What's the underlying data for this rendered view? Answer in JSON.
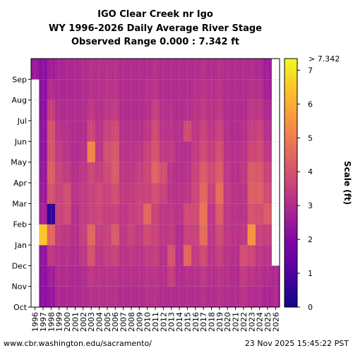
{
  "chart_data": {
    "type": "heatmap",
    "title_lines": [
      "IGO Clear Creek nr Igo",
      "WY 1996-2026 Daily Average River Stage",
      "Observed Range 0.000 : 7.342 ft"
    ],
    "x_labels": [
      "1996",
      "1997",
      "1998",
      "1999",
      "2000",
      "2001",
      "2002",
      "2003",
      "2004",
      "2005",
      "2006",
      "2007",
      "2008",
      "2009",
      "2010",
      "2011",
      "2012",
      "2013",
      "2014",
      "2015",
      "2016",
      "2017",
      "2018",
      "2019",
      "2020",
      "2021",
      "2022",
      "2023",
      "2024",
      "2025",
      "2026"
    ],
    "y_labels": [
      "Oct",
      "Nov",
      "Dec",
      "Jan",
      "Feb",
      "Mar",
      "Apr",
      "May",
      "Jun",
      "Jul",
      "Aug",
      "Sep"
    ],
    "months": [
      "Oct",
      "Nov",
      "Dec",
      "Jan",
      "Feb",
      "Mar",
      "Apr",
      "May",
      "Jun",
      "Jul",
      "Aug",
      "Sep"
    ],
    "colorbar": {
      "label": "Scale (ft)",
      "ticks": [
        0,
        1,
        2,
        3,
        4,
        5,
        6,
        7
      ],
      "tick_labels": [
        "0",
        "1",
        "2",
        "3",
        "4",
        "5",
        "6",
        "7"
      ],
      "top_label": "> 7.342",
      "min": 0,
      "max": 7.342,
      "colormap": "plasma"
    },
    "grid": true,
    "series": [
      {
        "wy": "1996",
        "monthly": [
          null,
          null,
          null,
          null,
          null,
          null,
          null,
          null,
          null,
          null,
          null,
          2.5
        ]
      },
      {
        "wy": "1997",
        "monthly": [
          2.2,
          2.2,
          2.3,
          6.5,
          2.7,
          2.5,
          2.4,
          2.3,
          2.3,
          2.2,
          2.2,
          2.2
        ]
      },
      {
        "wy": "1998",
        "monthly": [
          2.4,
          2.6,
          3.3,
          4.5,
          0.5,
          4.0,
          4.3,
          4.0,
          4.0,
          3.5,
          3.0,
          2.6
        ]
      },
      {
        "wy": "1999",
        "monthly": [
          2.9,
          3.0,
          3.1,
          3.4,
          3.6,
          3.6,
          3.6,
          3.4,
          3.2,
          3.0,
          2.9,
          2.8
        ]
      },
      {
        "wy": "2000",
        "monthly": [
          2.9,
          3.0,
          3.1,
          3.3,
          3.8,
          3.9,
          3.4,
          3.2,
          3.1,
          3.0,
          2.9,
          2.9
        ]
      },
      {
        "wy": "2001",
        "monthly": [
          2.9,
          2.9,
          3.0,
          3.1,
          3.1,
          3.2,
          3.1,
          3.0,
          3.0,
          3.0,
          2.9,
          2.9
        ]
      },
      {
        "wy": "2002",
        "monthly": [
          3.0,
          3.0,
          3.3,
          3.5,
          3.4,
          3.4,
          3.3,
          3.1,
          3.0,
          3.0,
          3.0,
          3.0
        ]
      },
      {
        "wy": "2003",
        "monthly": [
          3.1,
          3.3,
          4.0,
          4.5,
          3.6,
          3.6,
          3.7,
          5.2,
          3.7,
          3.3,
          3.1,
          3.1
        ]
      },
      {
        "wy": "2004",
        "monthly": [
          3.1,
          3.2,
          3.3,
          3.5,
          3.7,
          3.8,
          3.5,
          3.3,
          3.2,
          3.1,
          3.1,
          3.1
        ]
      },
      {
        "wy": "2005",
        "monthly": [
          3.1,
          3.2,
          3.5,
          3.6,
          3.5,
          3.6,
          3.8,
          3.9,
          3.6,
          3.3,
          3.2,
          3.1
        ]
      },
      {
        "wy": "2006",
        "monthly": [
          3.1,
          3.2,
          3.6,
          4.2,
          3.6,
          3.9,
          4.2,
          4.1,
          3.8,
          3.4,
          3.2,
          3.1
        ]
      },
      {
        "wy": "2007",
        "monthly": [
          3.0,
          3.1,
          3.2,
          3.3,
          3.3,
          3.4,
          3.3,
          3.2,
          3.1,
          3.0,
          3.0,
          3.0
        ]
      },
      {
        "wy": "2008",
        "monthly": [
          3.0,
          3.1,
          3.3,
          3.6,
          3.5,
          3.4,
          3.3,
          3.2,
          3.1,
          3.0,
          3.0,
          3.0
        ]
      },
      {
        "wy": "2009",
        "monthly": [
          3.0,
          3.1,
          3.2,
          3.4,
          3.6,
          3.6,
          3.5,
          3.3,
          3.1,
          3.0,
          3.0,
          3.0
        ]
      },
      {
        "wy": "2010",
        "monthly": [
          3.1,
          3.2,
          3.4,
          3.8,
          4.5,
          3.6,
          3.7,
          3.6,
          3.3,
          3.1,
          3.1,
          3.0
        ]
      },
      {
        "wy": "2011",
        "monthly": [
          3.1,
          3.2,
          3.5,
          3.6,
          3.6,
          3.9,
          4.4,
          4.0,
          3.8,
          3.5,
          3.2,
          3.1
        ]
      },
      {
        "wy": "2012",
        "monthly": [
          3.0,
          3.1,
          3.1,
          3.3,
          3.3,
          3.6,
          3.9,
          3.4,
          3.2,
          3.1,
          3.0,
          3.0
        ]
      },
      {
        "wy": "2013",
        "monthly": [
          3.0,
          3.5,
          4.0,
          3.4,
          3.3,
          3.2,
          3.2,
          3.4,
          3.2,
          3.1,
          3.0,
          3.0
        ]
      },
      {
        "wy": "2014",
        "monthly": [
          3.0,
          3.0,
          3.0,
          3.0,
          3.2,
          3.2,
          3.1,
          3.1,
          3.1,
          3.0,
          3.0,
          3.0
        ]
      },
      {
        "wy": "2015",
        "monthly": [
          3.0,
          3.1,
          4.5,
          3.6,
          3.8,
          3.3,
          3.2,
          3.1,
          3.8,
          3.1,
          3.0,
          3.0
        ]
      },
      {
        "wy": "2016",
        "monthly": [
          3.0,
          3.1,
          3.4,
          3.6,
          3.8,
          3.7,
          3.6,
          3.4,
          3.3,
          3.2,
          3.1,
          3.0
        ]
      },
      {
        "wy": "2017",
        "monthly": [
          3.1,
          3.3,
          3.8,
          4.6,
          4.8,
          4.5,
          4.2,
          3.8,
          3.6,
          3.3,
          3.2,
          3.1
        ]
      },
      {
        "wy": "2018",
        "monthly": [
          3.0,
          3.1,
          3.2,
          3.3,
          3.3,
          3.6,
          3.8,
          3.5,
          3.3,
          3.2,
          3.1,
          3.0
        ]
      },
      {
        "wy": "2019",
        "monthly": [
          3.1,
          3.2,
          3.5,
          3.8,
          4.2,
          4.6,
          4.2,
          3.9,
          3.6,
          3.3,
          3.2,
          3.1
        ]
      },
      {
        "wy": "2020",
        "monthly": [
          3.0,
          3.1,
          3.2,
          3.3,
          3.3,
          3.4,
          3.3,
          3.2,
          3.1,
          3.0,
          3.0,
          3.0
        ]
      },
      {
        "wy": "2021",
        "monthly": [
          3.0,
          3.0,
          3.1,
          3.2,
          3.2,
          3.2,
          3.1,
          3.1,
          3.0,
          3.0,
          3.0,
          3.0
        ]
      },
      {
        "wy": "2022",
        "monthly": [
          3.2,
          3.4,
          3.9,
          3.3,
          3.2,
          3.2,
          3.3,
          3.2,
          3.1,
          3.0,
          3.0,
          3.0
        ]
      },
      {
        "wy": "2023",
        "monthly": [
          3.0,
          3.2,
          3.7,
          5.5,
          4.0,
          4.3,
          4.2,
          3.7,
          3.5,
          3.3,
          3.1,
          3.0
        ]
      },
      {
        "wy": "2024",
        "monthly": [
          3.0,
          3.1,
          3.3,
          3.6,
          3.9,
          4.3,
          4.1,
          3.8,
          3.6,
          3.3,
          3.1,
          2.9
        ]
      },
      {
        "wy": "2025",
        "monthly": [
          2.8,
          3.0,
          3.2,
          3.5,
          4.2,
          3.8,
          3.6,
          3.3,
          3.1,
          2.9,
          2.7,
          2.6
        ]
      },
      {
        "wy": "2026",
        "monthly": [
          2.9,
          2.9,
          null,
          null,
          null,
          null,
          null,
          null,
          null,
          null,
          null,
          null
        ]
      }
    ],
    "annotations": {
      "left": "www.cbr.washington.edu/sacramento/",
      "right": "23 Nov 2025 15:45:22 PST"
    }
  }
}
